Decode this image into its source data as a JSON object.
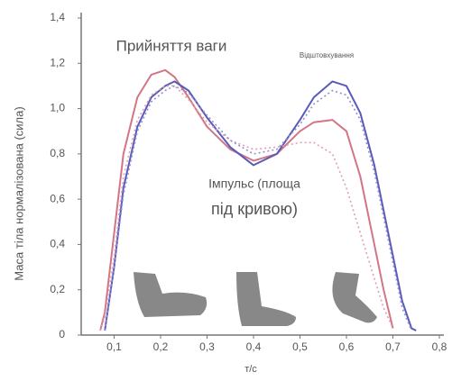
{
  "chart_data": {
    "type": "line",
    "y_label": "Маса тіла нормалізована (сила)",
    "x_label": "т/с",
    "annotations": [
      "Прийняття ваги",
      "Відштовхування",
      "Імпульс (площа",
      "під кривою)"
    ],
    "x": [
      0.07,
      0.08,
      0.1,
      0.12,
      0.15,
      0.18,
      0.21,
      0.23,
      0.26,
      0.3,
      0.35,
      0.4,
      0.45,
      0.5,
      0.53,
      0.57,
      0.6,
      0.63,
      0.66,
      0.68,
      0.7,
      0.72,
      0.74,
      0.75
    ],
    "series": [
      {
        "color": "#d27585",
        "style": "solid",
        "values": [
          0.02,
          0.1,
          0.45,
          0.8,
          1.05,
          1.15,
          1.17,
          1.14,
          1.05,
          0.92,
          0.82,
          0.77,
          0.8,
          0.9,
          0.94,
          0.95,
          0.9,
          0.7,
          0.4,
          0.2,
          0.03,
          null,
          null,
          null
        ]
      },
      {
        "color": "#5a5ab8",
        "style": "solid",
        "values": [
          null,
          0.02,
          0.3,
          0.65,
          0.92,
          1.05,
          1.1,
          1.12,
          1.08,
          0.96,
          0.83,
          0.75,
          0.8,
          0.95,
          1.05,
          1.12,
          1.1,
          0.98,
          0.75,
          0.55,
          0.35,
          0.15,
          0.03,
          0.02
        ]
      },
      {
        "color": "#e0a0b0",
        "style": "dotted",
        "values": [
          0.02,
          0.08,
          0.35,
          0.7,
          0.95,
          1.06,
          1.1,
          1.1,
          1.04,
          0.94,
          0.86,
          0.82,
          0.83,
          0.85,
          0.85,
          0.8,
          0.65,
          0.45,
          0.25,
          0.12,
          0.03,
          null,
          null,
          null
        ]
      },
      {
        "color": "#9090d0",
        "style": "dotted",
        "values": [
          null,
          0.02,
          0.3,
          0.62,
          0.9,
          1.03,
          1.08,
          1.1,
          1.07,
          0.97,
          0.86,
          0.8,
          0.82,
          0.93,
          1.02,
          1.08,
          1.06,
          0.95,
          0.72,
          0.52,
          0.32,
          0.12,
          0.02,
          null
        ]
      }
    ],
    "xlim": [
      0,
      0.8
    ],
    "xticks": [
      {
        "value": 0.1,
        "label": "0,1"
      },
      {
        "value": 0.2,
        "label": "0,2"
      },
      {
        "value": 0.3,
        "label": "0,3"
      },
      {
        "value": 0.4,
        "label": "0,4"
      },
      {
        "value": 0.5,
        "label": "0,5"
      },
      {
        "value": 0.6,
        "label": "0,6"
      },
      {
        "value": 0.7,
        "label": "0,7"
      },
      {
        "value": 0.8,
        "label": "0,8"
      }
    ],
    "ylim": [
      0,
      1.4
    ],
    "yticks": [
      0,
      {
        "value": 0.2,
        "label": "0,2"
      },
      {
        "value": 0.4,
        "label": "0,4"
      },
      {
        "value": 0.6,
        "label": "0,6"
      },
      {
        "value": 0.8,
        "label": "0,8"
      },
      {
        "value": 1.0,
        "label": "1,0"
      },
      {
        "value": 1.2,
        "label": "1,2"
      },
      {
        "value": 1.4,
        "label": "1,4"
      }
    ]
  }
}
